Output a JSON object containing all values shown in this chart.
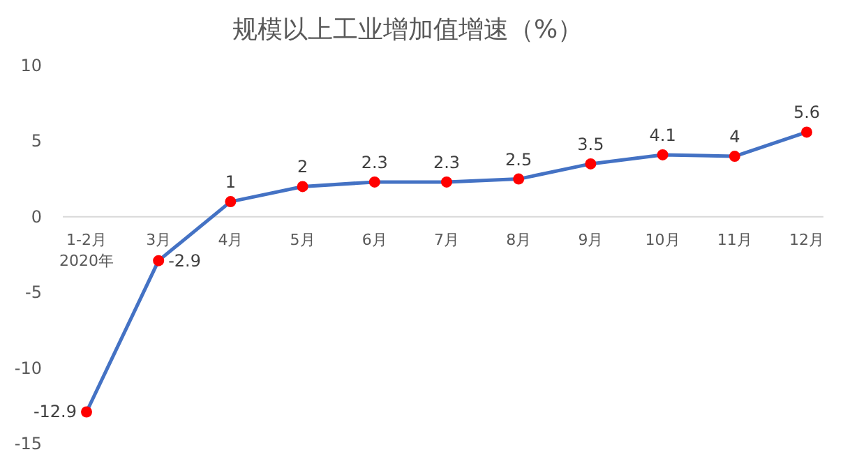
{
  "chart_data": {
    "type": "line",
    "title": "规模以上工业增加值增速（%）",
    "categories": [
      "1-2月\n2020年",
      "3月",
      "4月",
      "5月",
      "6月",
      "7月",
      "8月",
      "9月",
      "10月",
      "11月",
      "12月"
    ],
    "series": [
      {
        "color": "#4472c4",
        "colors": [
          "#ff0000",
          "#ff0000",
          "#ff0000",
          "#ff0000",
          "#ff0000",
          "#ff0000",
          "#ff0000",
          "#ff0000",
          "#ff0000",
          "#ff0000",
          "#ff0000"
        ],
        "values": [
          -12.9,
          -2.9,
          1,
          2,
          2.3,
          2.3,
          2.5,
          3.5,
          4.1,
          4,
          5.6
        ]
      }
    ],
    "ylim": [
      -15,
      10
    ],
    "yticks": [
      -15,
      -10,
      -5,
      0,
      5,
      10
    ],
    "grid": false,
    "marker": "circle",
    "data_labels": true
  }
}
